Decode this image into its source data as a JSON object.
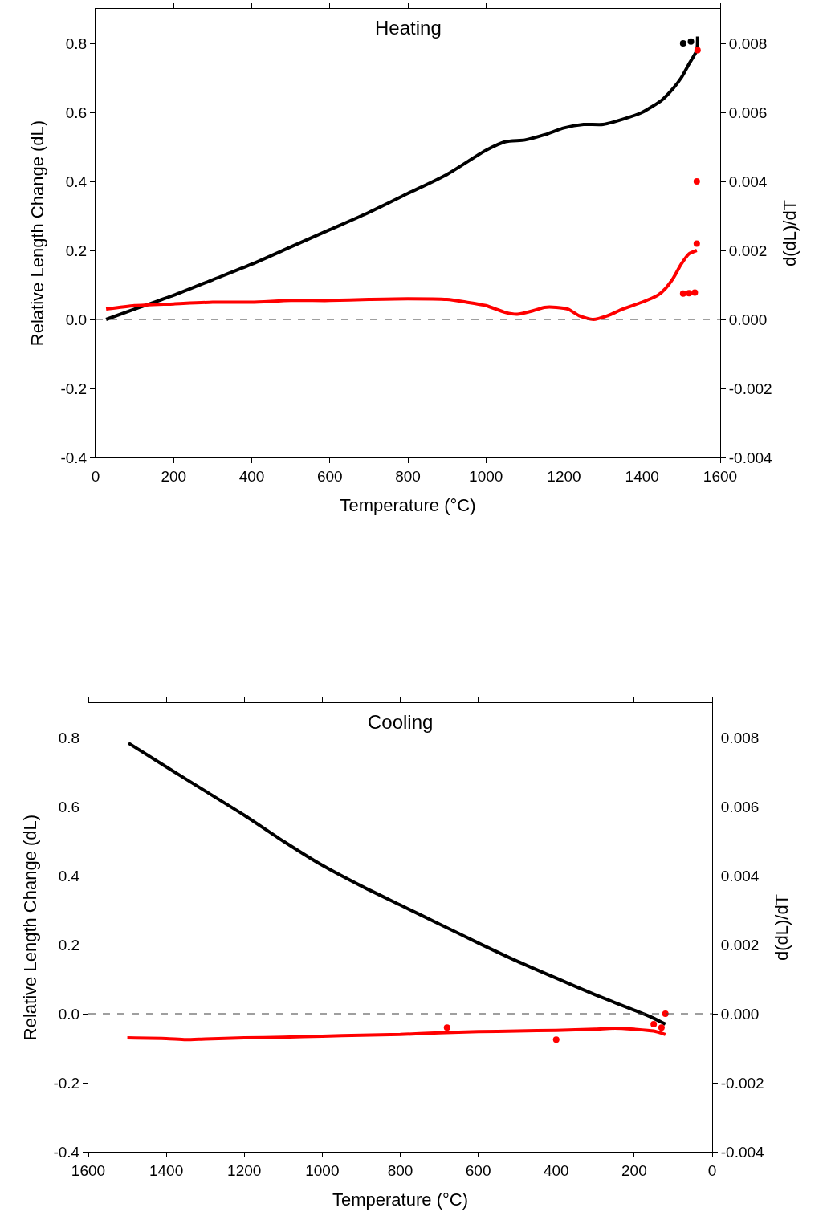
{
  "chart_data": [
    {
      "type": "line",
      "title": "Heating",
      "xlabel": "Temperature (°C)",
      "ylabel": "Relative Length Change (dL)",
      "y2label": "d(dL)/dT",
      "xlim": [
        0,
        1600
      ],
      "xticks": [
        0,
        200,
        400,
        600,
        800,
        1000,
        1200,
        1400,
        1600
      ],
      "ylim": [
        -0.4,
        0.9
      ],
      "yticks": [
        -0.4,
        -0.2,
        {
          "value": 0,
          "label": "0.0"
        },
        0.2,
        0.4,
        0.6,
        0.8
      ],
      "y2lim": [
        -0.004,
        0.009
      ],
      "y2ticks": [
        -0.004,
        -0.002,
        {
          "value": 0,
          "label": "0.000"
        },
        0.002,
        0.004,
        0.006,
        0.008
      ],
      "grid": false,
      "ref_lines": [
        {
          "axis": "y",
          "value": 0,
          "color": "#404040",
          "line_style": "dashed"
        }
      ],
      "series": [
        {
          "color": "#000000",
          "x": [
            27,
            100,
            200,
            300,
            400,
            500,
            600,
            700,
            800,
            900,
            1000,
            1050,
            1100,
            1150,
            1200,
            1250,
            1300,
            1350,
            1400,
            1450,
            1480,
            1500,
            1520,
            1540,
            1542
          ],
          "values": [
            0.0,
            0.03,
            0.07,
            0.115,
            0.16,
            0.21,
            0.26,
            0.31,
            0.365,
            0.42,
            0.49,
            0.515,
            0.52,
            0.535,
            0.555,
            0.565,
            0.565,
            0.58,
            0.6,
            0.635,
            0.67,
            0.7,
            0.74,
            0.78,
            0.82
          ]
        },
        {
          "type": "scatter",
          "marker": "circle",
          "color": "#000000",
          "x": [
            1505,
            1525
          ],
          "values": [
            0.8,
            0.805
          ]
        },
        {
          "axis": "y2",
          "color": "#ff0000",
          "x": [
            27,
            100,
            200,
            300,
            400,
            500,
            600,
            700,
            800,
            900,
            950,
            1000,
            1050,
            1080,
            1120,
            1150,
            1180,
            1210,
            1240,
            1275,
            1310,
            1350,
            1400,
            1440,
            1460,
            1480,
            1500,
            1520,
            1540
          ],
          "values": [
            0.0003,
            0.0004,
            0.00045,
            0.0005,
            0.0005,
            0.00055,
            0.00055,
            0.00058,
            0.0006,
            0.00058,
            0.0005,
            0.0004,
            0.0002,
            0.00015,
            0.00025,
            0.00035,
            0.00035,
            0.0003,
            0.0001,
            0.0,
            0.0001,
            0.0003,
            0.0005,
            0.0007,
            0.0009,
            0.0012,
            0.0016,
            0.0019,
            0.002
          ]
        },
        {
          "type": "scatter",
          "axis": "y2",
          "marker": "circle",
          "color": "#ff0000",
          "x": [
            1505,
            1520,
            1535,
            1540,
            1540,
            1542
          ],
          "values": [
            0.00075,
            0.00076,
            0.00078,
            0.0022,
            0.004,
            0.0078
          ]
        }
      ]
    },
    {
      "type": "line",
      "title": "Cooling",
      "xlabel": "Temperature (°C)",
      "ylabel": "Relative Length Change (dL)",
      "y2label": "d(dL)/dT",
      "xlim": [
        1600,
        0
      ],
      "xticks": [
        1600,
        1400,
        1200,
        1000,
        800,
        600,
        400,
        200,
        0
      ],
      "ylim": [
        -0.4,
        0.9
      ],
      "yticks": [
        -0.4,
        -0.2,
        {
          "value": 0,
          "label": "0.0"
        },
        0.2,
        0.4,
        0.6,
        0.8
      ],
      "y2lim": [
        -0.004,
        0.009
      ],
      "y2ticks": [
        -0.004,
        -0.002,
        {
          "value": 0,
          "label": "0.000"
        },
        0.002,
        0.004,
        0.006,
        0.008
      ],
      "grid": false,
      "ref_lines": [
        {
          "axis": "y",
          "value": 0,
          "color": "#404040",
          "line_style": "dashed"
        }
      ],
      "series": [
        {
          "color": "#000000",
          "x": [
            1497,
            1400,
            1300,
            1200,
            1100,
            1000,
            900,
            800,
            700,
            600,
            500,
            400,
            300,
            200,
            160,
            120
          ],
          "values": [
            0.784,
            0.715,
            0.645,
            0.575,
            0.5,
            0.43,
            0.37,
            0.315,
            0.26,
            0.205,
            0.152,
            0.103,
            0.055,
            0.01,
            -0.008,
            -0.03
          ]
        },
        {
          "axis": "y2",
          "color": "#ff0000",
          "x": [
            1500,
            1400,
            1350,
            1300,
            1200,
            1100,
            1000,
            900,
            800,
            700,
            600,
            500,
            400,
            300,
            250,
            200,
            150,
            120
          ],
          "values": [
            -0.0007,
            -0.00072,
            -0.00075,
            -0.00073,
            -0.0007,
            -0.00068,
            -0.00065,
            -0.00062,
            -0.0006,
            -0.00055,
            -0.00052,
            -0.0005,
            -0.00048,
            -0.00045,
            -0.00042,
            -0.00045,
            -0.0005,
            -0.0006
          ]
        },
        {
          "type": "scatter",
          "axis": "y2",
          "marker": "circle",
          "color": "#ff0000",
          "x": [
            120,
            400,
            680,
            150,
            130
          ],
          "values": [
            0.0,
            -0.00075,
            -0.0004,
            -0.0003,
            -0.0004
          ]
        }
      ]
    }
  ]
}
